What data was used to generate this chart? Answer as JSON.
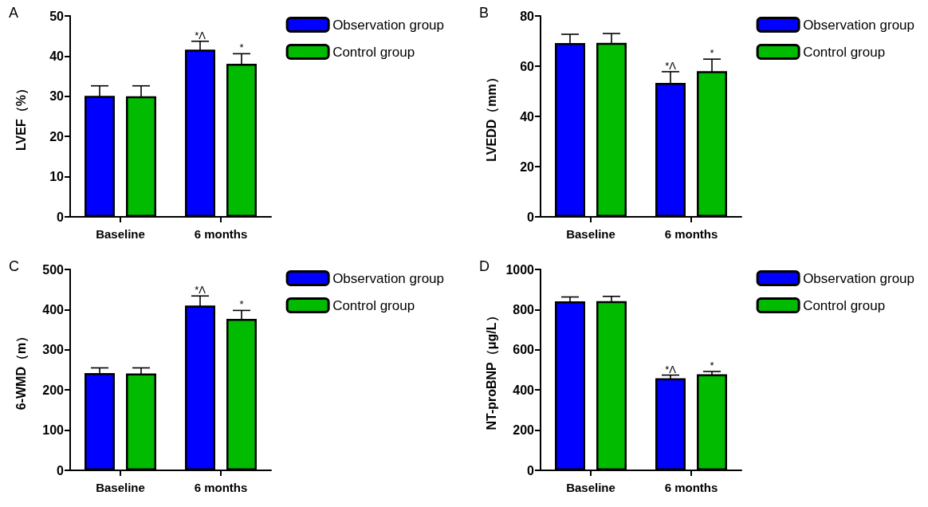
{
  "chart_data": [
    {
      "type": "bar",
      "title": "A",
      "ylabel": "LVEF（%）",
      "categories": [
        "Baseline",
        "6 months"
      ],
      "ylim": [
        0,
        50
      ],
      "yticks": [
        0,
        10,
        20,
        30,
        40,
        50
      ],
      "grid": false,
      "legend": "top right",
      "series": [
        {
          "name": "Observation group",
          "color": "#0000ff",
          "values": [
            30.1,
            41.6
          ],
          "errors": [
            2.5,
            2.1
          ]
        },
        {
          "name": "Control group",
          "color": "#00bb00",
          "values": [
            30.0,
            38.1
          ],
          "errors": [
            2.6,
            2.5
          ]
        }
      ],
      "annotations": [
        "*Λ",
        "*"
      ]
    },
    {
      "type": "bar",
      "title": "B",
      "ylabel": "LVEDD（mm）",
      "categories": [
        "Baseline",
        "6 months"
      ],
      "ylim": [
        0,
        80
      ],
      "yticks": [
        0,
        20,
        40,
        60,
        80
      ],
      "grid": false,
      "legend": "top right",
      "series": [
        {
          "name": "Observation group",
          "color": "#0000ff",
          "values": [
            69.2,
            53.3
          ],
          "errors": [
            3.5,
            4.5
          ]
        },
        {
          "name": "Control group",
          "color": "#00bb00",
          "values": [
            69.3,
            58.0
          ],
          "errors": [
            3.7,
            4.8
          ]
        }
      ],
      "annotations": [
        "*Λ",
        "*"
      ]
    },
    {
      "type": "bar",
      "title": "C",
      "ylabel": "6-WMD（m）",
      "categories": [
        "Baseline",
        "6 months"
      ],
      "ylim": [
        0,
        500
      ],
      "yticks": [
        0,
        100,
        200,
        300,
        400,
        500
      ],
      "grid": false,
      "legend": "top right",
      "series": [
        {
          "name": "Observation group",
          "color": "#0000ff",
          "values": [
            242,
            410
          ],
          "errors": [
            13,
            24
          ]
        },
        {
          "name": "Control group",
          "color": "#00bb00",
          "values": [
            241,
            377
          ],
          "errors": [
            14,
            21
          ]
        }
      ],
      "annotations": [
        "*Λ",
        "*"
      ]
    },
    {
      "type": "bar",
      "title": "D",
      "ylabel": "NT-proBNP（μg/L）",
      "categories": [
        "Baseline",
        "6 months"
      ],
      "ylim": [
        0,
        1000
      ],
      "yticks": [
        0,
        200,
        400,
        600,
        800,
        1000
      ],
      "grid": false,
      "legend": "top right",
      "series": [
        {
          "name": "Observation group",
          "color": "#0000ff",
          "values": [
            841,
            458
          ],
          "errors": [
            22,
            16
          ]
        },
        {
          "name": "Control group",
          "color": "#00bb00",
          "values": [
            842,
            478
          ],
          "errors": [
            24,
            14
          ]
        }
      ],
      "annotations": [
        "*Λ",
        "*"
      ]
    }
  ]
}
